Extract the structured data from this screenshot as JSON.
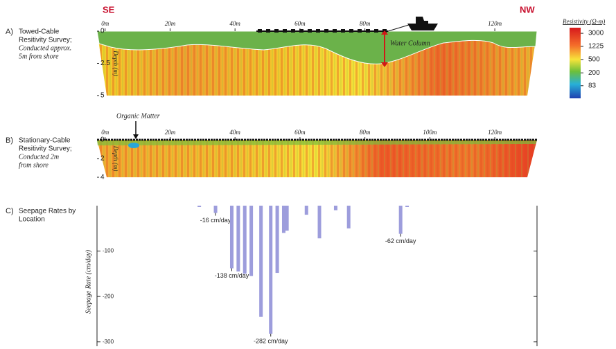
{
  "header": {
    "left": "SE",
    "right": "NW"
  },
  "chart_data": [
    {
      "type": "section",
      "panel_label": "A)",
      "description": [
        "Towed-Cable",
        "Resitivity Survey;",
        "Conducted approx.",
        "5m from shore"
      ],
      "y_label": "Depth (m)",
      "annotation": "Water Column",
      "xlim": [
        -2.5,
        133
      ],
      "xticks": [
        {
          "value": 0,
          "label": "0m"
        },
        {
          "value": 20,
          "label": "20m"
        },
        {
          "value": 40,
          "label": "40m"
        },
        {
          "value": 60,
          "label": "60m"
        },
        {
          "value": 80,
          "label": "80m"
        },
        {
          "value": 120,
          "label": "120m"
        }
      ],
      "ylim": [
        0,
        5
      ],
      "yticks": [
        0,
        2.5,
        5
      ],
      "colorbar": {
        "title": "Resistivity (Ω-m)",
        "log_scale": true,
        "lim": [
          35,
          4400
        ],
        "ticks": [
          3000,
          1225,
          500,
          200,
          83
        ]
      }
    },
    {
      "type": "section",
      "panel_label": "B)",
      "description": [
        "Stationary-Cable",
        "Resitivity Survey;",
        "Conducted 2m",
        "from shore"
      ],
      "y_label": "Depth (m)",
      "annotation": "Organic Matter",
      "xlim": [
        -2.5,
        133
      ],
      "xticks": [
        {
          "value": 0,
          "label": "0m"
        },
        {
          "value": 20,
          "label": "20m"
        },
        {
          "value": 40,
          "label": "40m"
        },
        {
          "value": 60,
          "label": "60m"
        },
        {
          "value": 80,
          "label": "80m"
        },
        {
          "value": 100,
          "label": "100m"
        },
        {
          "value": 120,
          "label": "120m"
        }
      ],
      "ylim": [
        0,
        4
      ],
      "yticks": [
        0,
        2,
        4
      ]
    },
    {
      "type": "bar",
      "panel_label": "C)",
      "description": [
        "Seepage Rates by",
        "Location"
      ],
      "y_label": "Seepage Rate (cm/day)",
      "color": "#9d9ddc",
      "xlim": [
        -2.5,
        133
      ],
      "ylim": [
        -305,
        0
      ],
      "yticks": [
        -100,
        -200,
        -300
      ],
      "x": [
        29,
        34,
        39,
        41,
        43,
        45,
        48,
        51,
        53,
        55,
        56,
        62,
        66,
        71,
        75,
        91,
        93
      ],
      "values": [
        -3,
        -16,
        -138,
        -145,
        -150,
        -155,
        -245,
        -282,
        -148,
        -60,
        -55,
        -20,
        -72,
        -10,
        -50,
        -62,
        -3
      ],
      "value_labels": [
        null,
        "-16 cm/day",
        "-138 cm/day",
        null,
        null,
        null,
        null,
        "-282 cm/day",
        null,
        null,
        null,
        null,
        null,
        null,
        null,
        "-62 cm/day",
        null
      ]
    }
  ]
}
